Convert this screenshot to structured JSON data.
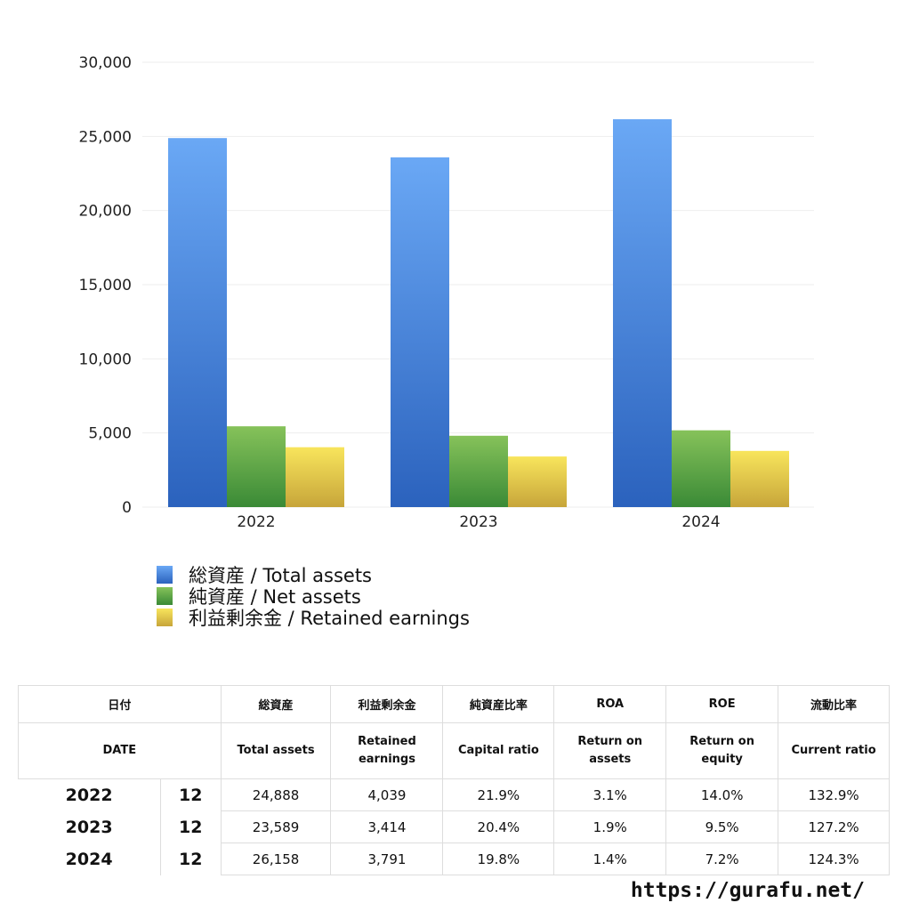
{
  "chart_data": {
    "type": "bar",
    "categories": [
      "2022",
      "2023",
      "2024"
    ],
    "series": [
      {
        "name": "総資産 / Total assets",
        "values": [
          24888,
          23589,
          26158
        ],
        "color_top": "#6aa8f5",
        "color_bottom": "#2b62bd"
      },
      {
        "name": "純資産 / Net assets",
        "values": [
          5450,
          4812,
          5179
        ],
        "color_top": "#86c25a",
        "color_bottom": "#3a8a36"
      },
      {
        "name": "利益剰余金 / Retained earnings",
        "values": [
          4039,
          3414,
          3791
        ],
        "color_top": "#f8e55c",
        "color_bottom": "#c7a53a"
      }
    ],
    "ylim": [
      0,
      30000
    ],
    "yticks": [
      0,
      5000,
      10000,
      15000,
      20000,
      25000,
      30000
    ],
    "ytick_labels": [
      "0",
      "5,000",
      "10,000",
      "15,000",
      "20,000",
      "25,000",
      "30,000"
    ],
    "grid": true,
    "legend_position": "bottom-left",
    "title": "",
    "xlabel": "",
    "ylabel": ""
  },
  "table": {
    "header_jp": [
      "日付",
      "総資産",
      "利益剰余金",
      "純資産比率",
      "ROA",
      "ROE",
      "流動比率"
    ],
    "header_en": [
      "DATE",
      "Total assets",
      "Retained earnings",
      "Capital ratio",
      "Return on assets",
      "Return on equity",
      "Current ratio"
    ],
    "rows": [
      {
        "year": "2022",
        "month": "12",
        "cells": [
          "24,888",
          "4,039",
          "21.9%",
          "3.1%",
          "14.0%",
          "132.9%"
        ]
      },
      {
        "year": "2023",
        "month": "12",
        "cells": [
          "23,589",
          "3,414",
          "20.4%",
          "1.9%",
          "9.5%",
          "127.2%"
        ]
      },
      {
        "year": "2024",
        "month": "12",
        "cells": [
          "26,158",
          "3,791",
          "19.8%",
          "1.4%",
          "7.2%",
          "124.3%"
        ]
      }
    ]
  },
  "site": "https://gurafu.net/"
}
